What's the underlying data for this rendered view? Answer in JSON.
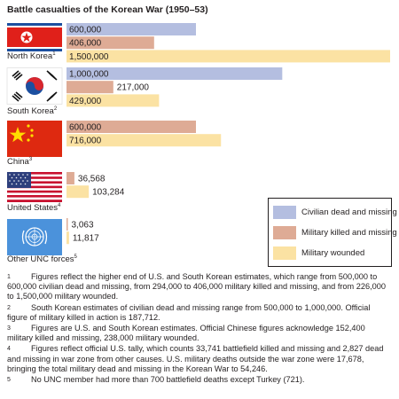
{
  "chart_data": {
    "type": "bar",
    "orientation": "horizontal",
    "title": "Battle casualties of the Korean War (1950–53)",
    "categories": [
      "North Korea",
      "South Korea",
      "China",
      "United States",
      "Other UNC forces"
    ],
    "category_footnote_marks": [
      "1",
      "2",
      "3",
      "4",
      "5"
    ],
    "series": [
      {
        "name": "Civilian dead and missing",
        "color": "#b4bee0",
        "values": [
          600000,
          1000000,
          null,
          null,
          null
        ],
        "labels": [
          "600,000",
          "1,000,000",
          "",
          "",
          ""
        ]
      },
      {
        "name": "Military killed and missing",
        "color": "#deab95",
        "values": [
          406000,
          217000,
          600000,
          36568,
          3063
        ],
        "labels": [
          "406,000",
          "217,000",
          "600,000",
          "36,568",
          "3,063"
        ]
      },
      {
        "name": "Military wounded",
        "color": "#fbe2a3",
        "values": [
          1500000,
          429000,
          716000,
          103284,
          11817
        ],
        "labels": [
          "1,500,000",
          "429,000",
          "716,000",
          "103,284",
          "11,817"
        ]
      }
    ],
    "xlim": [
      0,
      1500000
    ],
    "grid": false,
    "legend_position": "right"
  },
  "icons": [
    "north-korea-flag",
    "south-korea-flag",
    "china-flag",
    "united-states-flag",
    "united-nations-flag"
  ],
  "footnotes": [
    {
      "mark": "1",
      "text": "Figures reflect the higher end of U.S. and South Korean estimates, which range from 500,000 to 600,000 civilian dead and missing, from 294,000 to 406,000 military killed and missing, and from 226,000 to 1,500,000 military wounded."
    },
    {
      "mark": "2",
      "text": "South Korean estimates of civilian dead and missing range from 500,000 to 1,000,000. Official figure of military killed in action is 187,712."
    },
    {
      "mark": "3",
      "text": "Figures are U.S. and South Korean estimates. Official Chinese figures acknowledge 152,400 military killed and missing, 238,000 military wounded."
    },
    {
      "mark": "4",
      "text": "Figures reflect official U.S. tally, which counts 33,741 battlefield killed and missing and 2,827 dead and missing in war zone from other causes. U.S. military deaths outside the war zone were 17,678, bringing the total military dead and missing in the Korean War to 54,246."
    },
    {
      "mark": "5",
      "text": "No UNC member had more than 700 battlefield deaths except Turkey (721)."
    }
  ]
}
